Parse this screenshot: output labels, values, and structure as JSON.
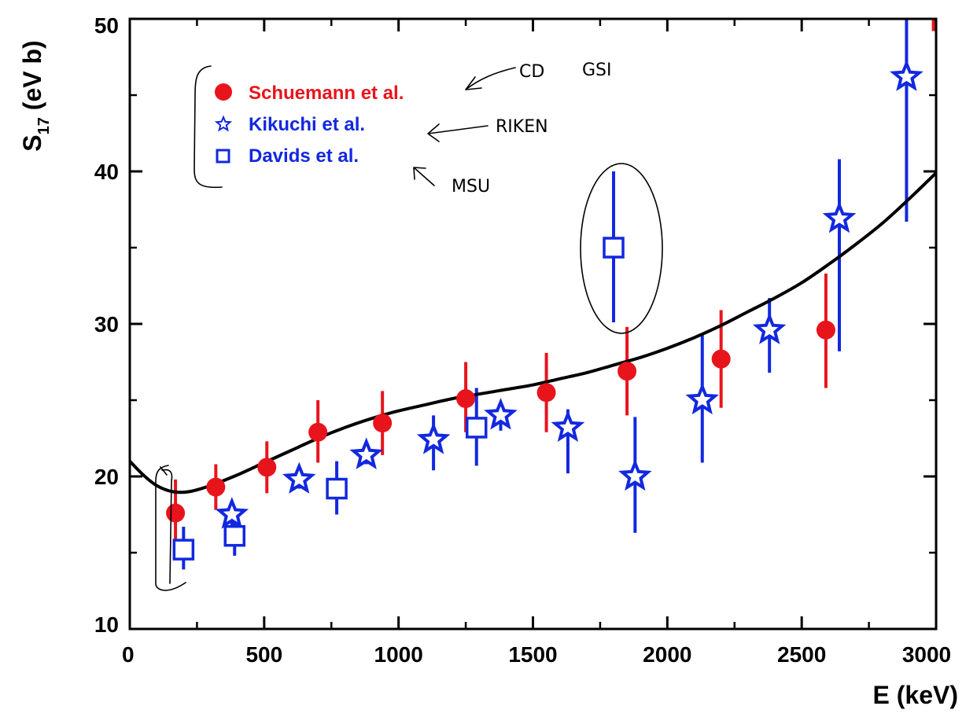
{
  "chart_data": {
    "type": "scatter",
    "title": "",
    "xlabel": "E (keV)",
    "ylabel_main": "S",
    "ylabel_sub": "17",
    "ylabel_unit": " (eV b)",
    "xlim": [
      0,
      3000
    ],
    "ylim": [
      10,
      50
    ],
    "x_ticks": [
      0,
      500,
      1000,
      1500,
      2000,
      2500,
      3000
    ],
    "y_ticks": [
      10,
      20,
      30,
      40,
      50
    ],
    "grid": false,
    "legend_position": "top-left",
    "series": [
      {
        "name": "Schuemann et al.",
        "marker": "circle",
        "color": "#e8141c",
        "points": [
          {
            "x": 170,
            "y": 17.6,
            "lo": 15.8,
            "hi": 19.8
          },
          {
            "x": 320,
            "y": 19.3,
            "lo": 17.8,
            "hi": 20.8
          },
          {
            "x": 510,
            "y": 20.6,
            "lo": 18.9,
            "hi": 22.3
          },
          {
            "x": 700,
            "y": 22.9,
            "lo": 20.9,
            "hi": 25.0
          },
          {
            "x": 940,
            "y": 23.5,
            "lo": 21.4,
            "hi": 25.6
          },
          {
            "x": 1250,
            "y": 25.1,
            "lo": 22.9,
            "hi": 27.5
          },
          {
            "x": 1550,
            "y": 25.5,
            "lo": 22.9,
            "hi": 28.1
          },
          {
            "x": 1850,
            "y": 26.9,
            "lo": 24.0,
            "hi": 29.8
          },
          {
            "x": 2200,
            "y": 27.7,
            "lo": 24.5,
            "hi": 30.9
          },
          {
            "x": 2590,
            "y": 29.6,
            "lo": 25.8,
            "hi": 33.3
          },
          {
            "x": 2990,
            "y": 50.0,
            "lo": 49.2,
            "hi": 50.0
          }
        ]
      },
      {
        "name": "Kikuchi et al.",
        "marker": "star",
        "color": "#1228e0",
        "points": [
          {
            "x": 380,
            "y": 17.5,
            "lo": 16.6,
            "hi": 18.4
          },
          {
            "x": 630,
            "y": 19.8,
            "lo": 19.2,
            "hi": 20.4
          },
          {
            "x": 880,
            "y": 21.4,
            "lo": 20.8,
            "hi": 22.0
          },
          {
            "x": 1130,
            "y": 22.4,
            "lo": 20.4,
            "hi": 24.0
          },
          {
            "x": 1380,
            "y": 24.0,
            "lo": 23.0,
            "hi": 24.8
          },
          {
            "x": 1630,
            "y": 23.2,
            "lo": 20.2,
            "hi": 24.4
          },
          {
            "x": 1880,
            "y": 20.0,
            "lo": 16.3,
            "hi": 23.9
          },
          {
            "x": 2130,
            "y": 25.0,
            "lo": 20.9,
            "hi": 29.3
          },
          {
            "x": 2380,
            "y": 29.6,
            "lo": 26.8,
            "hi": 31.7
          },
          {
            "x": 2640,
            "y": 36.9,
            "lo": 28.2,
            "hi": 40.8
          },
          {
            "x": 2890,
            "y": 46.2,
            "lo": 36.7,
            "hi": 50.0
          }
        ]
      },
      {
        "name": "Davids et al.",
        "marker": "square",
        "color": "#1228e0",
        "points": [
          {
            "x": 200,
            "y": 15.2,
            "lo": 13.9,
            "hi": 16.7
          },
          {
            "x": 390,
            "y": 16.1,
            "lo": 14.8,
            "hi": 17.5
          },
          {
            "x": 770,
            "y": 19.2,
            "lo": 17.5,
            "hi": 21.0
          },
          {
            "x": 1290,
            "y": 23.2,
            "lo": 20.7,
            "hi": 25.8
          },
          {
            "x": 1800,
            "y": 35.0,
            "lo": 30.1,
            "hi": 40.0
          }
        ]
      }
    ],
    "fit_curve": {
      "color": "#000000",
      "x": [
        0,
        50,
        100,
        160,
        220,
        300,
        400,
        500,
        600,
        700,
        800,
        900,
        1000,
        1100,
        1200,
        1300,
        1400,
        1500,
        1600,
        1700,
        1800,
        1900,
        2000,
        2100,
        2200,
        2300,
        2400,
        2500,
        2600,
        2700,
        2800,
        2900,
        3000
      ],
      "y": [
        21.0,
        20.1,
        19.4,
        19.0,
        19.0,
        19.4,
        20.1,
        20.9,
        21.7,
        22.5,
        23.2,
        23.8,
        24.3,
        24.7,
        25.1,
        25.4,
        25.7,
        26.0,
        26.4,
        26.8,
        27.3,
        27.8,
        28.4,
        29.1,
        29.9,
        30.8,
        31.7,
        32.7,
        33.9,
        35.2,
        36.6,
        38.2,
        39.9
      ]
    },
    "annotations": [
      "CD",
      "GSI",
      "RIKEN",
      "MSU"
    ]
  }
}
